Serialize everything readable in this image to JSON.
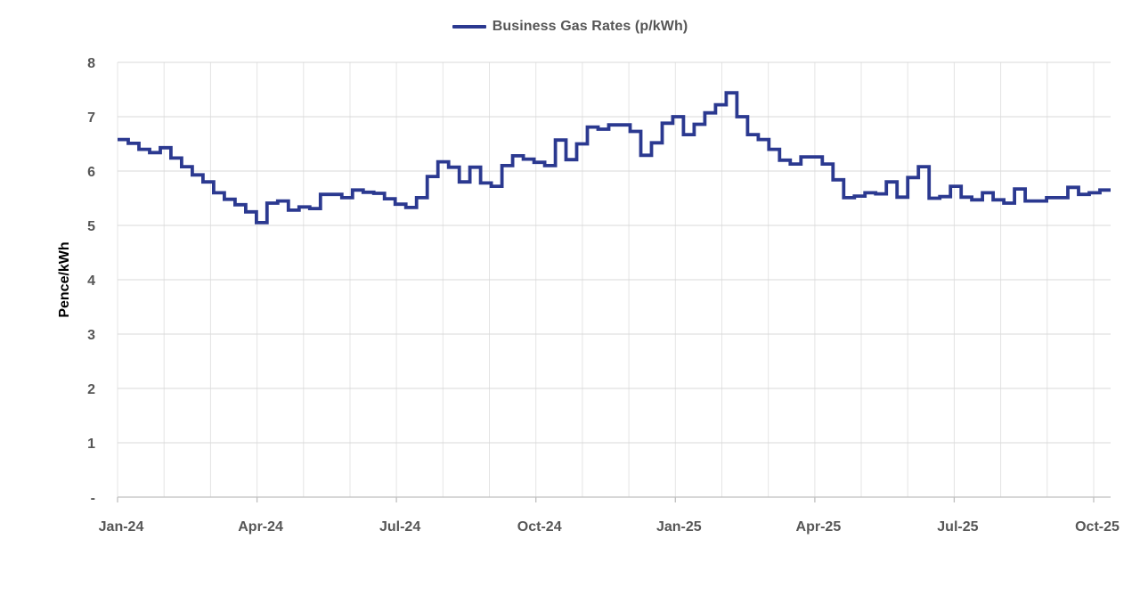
{
  "chart_data": {
    "type": "line",
    "step_style": true,
    "title": "",
    "ylabel": "Pence/kWh",
    "ylim": [
      0,
      8
    ],
    "grid": true,
    "legend_position": "top-center",
    "x_range_months": 21,
    "y_tick_labels": [
      "-",
      "1",
      "2",
      "3",
      "4",
      "5",
      "6",
      "7",
      "8"
    ],
    "x_tick_labels": [
      "Jan-24",
      "Apr-24",
      "Jul-24",
      "Oct-24",
      "Jan-25",
      "Apr-25",
      "Jul-25",
      "Oct-25"
    ],
    "series": [
      {
        "name": "Business Gas Rates (p/kWh)",
        "frequency": "weekly",
        "start": "Jan-24",
        "end": "Oct-25",
        "values": [
          6.58,
          6.51,
          6.4,
          6.34,
          6.43,
          6.24,
          6.08,
          5.93,
          5.8,
          5.6,
          5.48,
          5.38,
          5.25,
          5.05,
          5.41,
          5.45,
          5.28,
          5.34,
          5.31,
          5.57,
          5.57,
          5.51,
          5.65,
          5.61,
          5.59,
          5.49,
          5.39,
          5.33,
          5.51,
          5.9,
          6.17,
          6.07,
          5.8,
          6.07,
          5.78,
          5.72,
          6.1,
          6.28,
          6.22,
          6.16,
          6.1,
          6.57,
          6.21,
          6.5,
          6.81,
          6.77,
          6.85,
          6.85,
          6.73,
          6.29,
          6.52,
          6.88,
          7.0,
          6.67,
          6.86,
          7.07,
          7.22,
          7.44,
          7.0,
          6.67,
          6.58,
          6.4,
          6.2,
          6.13,
          6.26,
          6.26,
          6.13,
          5.84,
          5.51,
          5.54,
          5.6,
          5.58,
          5.8,
          5.52,
          5.88,
          6.08,
          5.5,
          5.53,
          5.72,
          5.52,
          5.47,
          5.6,
          5.47,
          5.41,
          5.67,
          5.45,
          5.45,
          5.51,
          5.51,
          5.7,
          5.57,
          5.6,
          5.65
        ]
      }
    ],
    "colors": {
      "line": "#2B3990",
      "grid_h": "#D9D9D9",
      "grid_v": "#E4E4E4",
      "axis": "#BFBFBF",
      "text": "#565656"
    }
  }
}
